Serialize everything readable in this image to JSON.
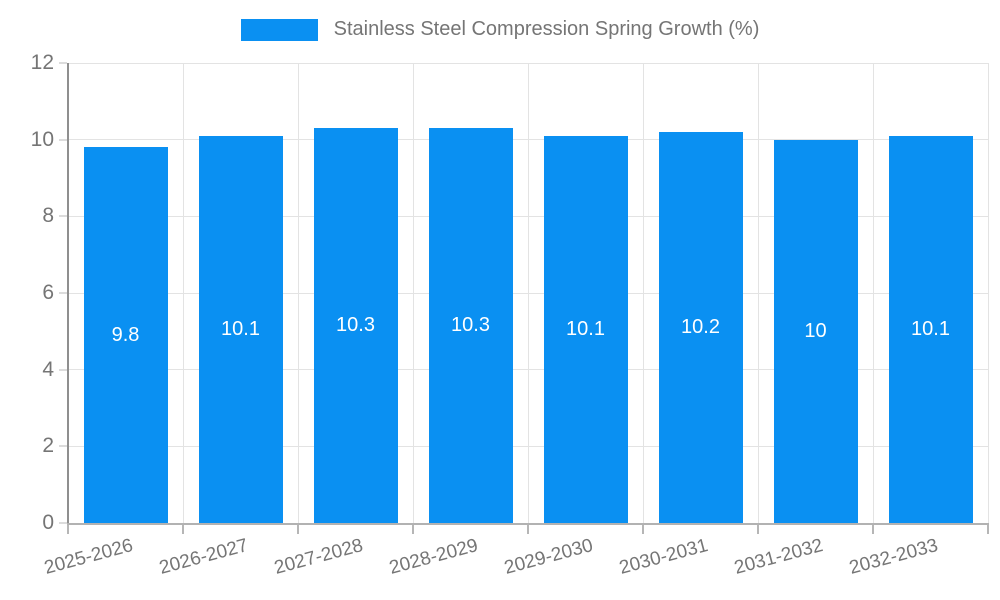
{
  "chart_data": {
    "type": "bar",
    "series_name": "Stainless Steel Compression Spring Growth (%)",
    "categories": [
      "2025-2026",
      "2026-2027",
      "2027-2028",
      "2028-2029",
      "2029-2030",
      "2030-2031",
      "2031-2032",
      "2032-2033"
    ],
    "values": [
      9.8,
      10.1,
      10.3,
      10.3,
      10.1,
      10.2,
      10,
      10.1
    ],
    "ylim": [
      0,
      12
    ],
    "yticks": [
      0,
      2,
      4,
      6,
      8,
      10,
      12
    ],
    "grid": true,
    "legend_position": "top",
    "bar_color": "#0a90f2",
    "value_label_color": "#ffffff",
    "axis_text_color": "#757575"
  }
}
